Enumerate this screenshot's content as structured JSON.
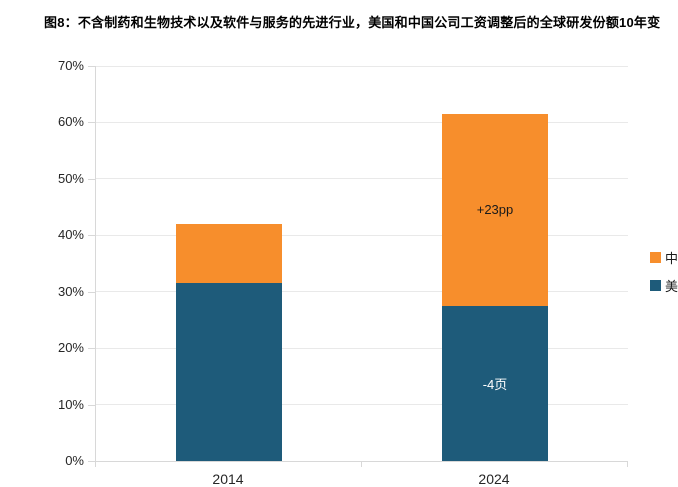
{
  "title": "图8：不含制药和生物技术以及软件与服务的先进行业，美国和中国公司工资调整后的全球研发份额10年变",
  "colors": {
    "china_orange": "#F78E2C",
    "us_blue": "#1E5B7A",
    "gridline": "#E9E9E9",
    "axis_line": "#D8D8D8",
    "tick_text": "#262626",
    "annotation_dark": "#1A1A1A",
    "annotation_light": "#FFFFFF",
    "background": "#FFFFFF"
  },
  "legend": [
    {
      "label": "中",
      "color": "#F78E2C"
    },
    {
      "label": "美",
      "color": "#1E5B7A"
    }
  ],
  "chart_data": {
    "type": "bar",
    "stacked": true,
    "title": "图8：不含制药和生物技术以及软件与服务的先进行业，美国和中国公司工资调整后的全球研发份额10年变",
    "categories": [
      "2014",
      "2024"
    ],
    "series": [
      {
        "name": "美",
        "key": "us",
        "color": "#1E5B7A",
        "values": [
          31.5,
          27.5
        ],
        "bar_labels": [
          "",
          "-4页"
        ],
        "label_color": "#FFFFFF"
      },
      {
        "name": "中",
        "key": "china",
        "color": "#F78E2C",
        "values": [
          10.5,
          34
        ],
        "bar_labels": [
          "",
          "+23pp"
        ],
        "label_color": "#1A1A1A"
      }
    ],
    "totals": [
      42,
      61.5
    ],
    "annotations": [
      "+23pp",
      "-4页"
    ],
    "ylim": [
      0,
      70
    ],
    "yticks": [
      "0%",
      "10%",
      "20%",
      "30%",
      "40%",
      "50%",
      "60%",
      "70%"
    ],
    "ytick_values": [
      0,
      10,
      20,
      30,
      40,
      50,
      60,
      70
    ],
    "xlabel": "",
    "ylabel": "",
    "grid": true,
    "legend_position": "right"
  }
}
